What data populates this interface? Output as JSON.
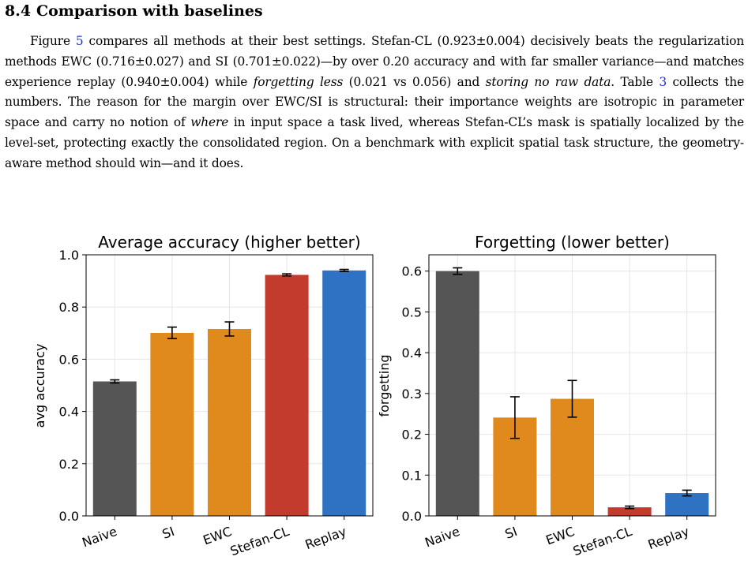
{
  "section": {
    "number": "8.4",
    "title": "Comparison with baselines"
  },
  "paragraph": {
    "t1": "Figure ",
    "ref_fig": "5",
    "t2": " compares all methods at their best settings. Stefan-CL (0.923±0.004) decisively beats the regularization methods EWC (0.716±0.027) and SI (0.701±0.022)—by over 0.20 accuracy and with far smaller variance—and matches experience replay (0.940±0.004) while ",
    "em1": "forgetting less",
    "t3": " (0.021 vs 0.056) and ",
    "em2": "storing no raw data",
    "t4": ". Table ",
    "ref_table": "3",
    "t5": " collects the numbers. The reason for the margin over EWC/SI is structural: their importance weights are isotropic in parameter space and carry no notion of ",
    "em3": "where",
    "t6": " in input space a task lived, whereas Stefan-CL’s mask is spatially localized by the level-set, protecting exactly the consolidated region. On a benchmark with explicit spatial task structure, the geometry-aware method should win—and it does."
  },
  "chart_data": [
    {
      "type": "bar",
      "title": "Average accuracy (higher better)",
      "xlabel": "",
      "ylabel": "avg accuracy",
      "categories": [
        "Naive",
        "SI",
        "EWC",
        "Stefan-CL",
        "Replay"
      ],
      "values": [
        0.515,
        0.701,
        0.716,
        0.923,
        0.94
      ],
      "errors": [
        0.006,
        0.022,
        0.027,
        0.004,
        0.004
      ],
      "colors": [
        "#555555",
        "#e08a1e",
        "#e08a1e",
        "#c23b2c",
        "#2f72c4"
      ],
      "ylim": [
        0,
        1.0
      ],
      "yticks": [
        "0.0",
        "0.2",
        "0.4",
        "0.6",
        "0.8",
        "1.0"
      ],
      "grid": true
    },
    {
      "type": "bar",
      "title": "Forgetting (lower better)",
      "xlabel": "",
      "ylabel": "forgetting",
      "categories": [
        "Naive",
        "SI",
        "EWC",
        "Stefan-CL",
        "Replay"
      ],
      "values": [
        0.6,
        0.241,
        0.287,
        0.021,
        0.056
      ],
      "errors": [
        0.008,
        0.051,
        0.045,
        0.003,
        0.007
      ],
      "colors": [
        "#555555",
        "#e08a1e",
        "#e08a1e",
        "#c23b2c",
        "#2f72c4"
      ],
      "ylim": [
        0,
        0.64
      ],
      "yticks": [
        "0.0",
        "0.1",
        "0.2",
        "0.3",
        "0.4",
        "0.5",
        "0.6"
      ],
      "grid": true
    }
  ]
}
